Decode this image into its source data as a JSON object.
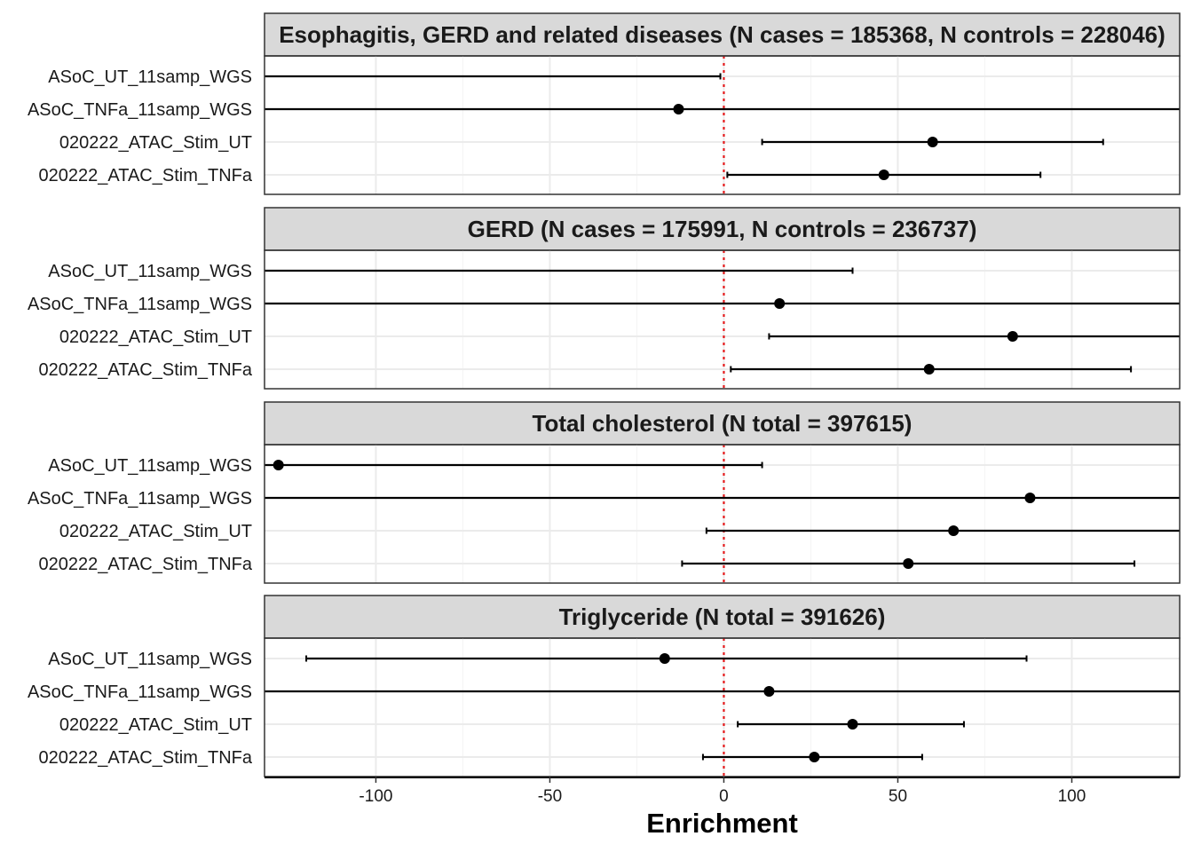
{
  "chart_data": {
    "type": "scatter",
    "style": "forest-plot-with-error-bars",
    "xlabel": "Enrichment",
    "xlim": [
      -132,
      131
    ],
    "x_ticks": [
      -100,
      -50,
      0,
      50,
      100
    ],
    "x_tick_labels": [
      "-100",
      "-50",
      "0",
      "50",
      "100"
    ],
    "reference_line": {
      "x": 0,
      "style": "dotted",
      "color": "#e41a1c"
    },
    "grid": true,
    "row_labels": [
      "ASoC_UT_11samp_WGS",
      "ASoC_TNFa_11samp_WGS",
      "020222_ATAC_Stim_UT",
      "020222_ATAC_Stim_TNFa"
    ],
    "panels": [
      {
        "title": "Esophagitis, GERD and related diseases (N cases = 185368, N controls = 228046)",
        "rows": [
          {
            "label": "ASoC_UT_11samp_WGS",
            "estimate": null,
            "lower": -135,
            "upper": -1
          },
          {
            "label": "ASoC_TNFa_11samp_WGS",
            "estimate": -13,
            "lower": -135,
            "upper": 135
          },
          {
            "label": "020222_ATAC_Stim_UT",
            "estimate": 60,
            "lower": 11,
            "upper": 109
          },
          {
            "label": "020222_ATAC_Stim_TNFa",
            "estimate": 46,
            "lower": 1,
            "upper": 91
          }
        ]
      },
      {
        "title": "GERD (N cases = 175991, N controls = 236737)",
        "rows": [
          {
            "label": "ASoC_UT_11samp_WGS",
            "estimate": null,
            "lower": -135,
            "upper": 37
          },
          {
            "label": "ASoC_TNFa_11samp_WGS",
            "estimate": 16,
            "lower": -135,
            "upper": 135
          },
          {
            "label": "020222_ATAC_Stim_UT",
            "estimate": 83,
            "lower": 13,
            "upper": 135
          },
          {
            "label": "020222_ATAC_Stim_TNFa",
            "estimate": 59,
            "lower": 2,
            "upper": 117
          }
        ]
      },
      {
        "title": "Total cholesterol (N total = 397615)",
        "rows": [
          {
            "label": "ASoC_UT_11samp_WGS",
            "estimate": -128,
            "lower": -135,
            "upper": 11
          },
          {
            "label": "ASoC_TNFa_11samp_WGS",
            "estimate": 88,
            "lower": -135,
            "upper": 135
          },
          {
            "label": "020222_ATAC_Stim_UT",
            "estimate": 66,
            "lower": -5,
            "upper": 135
          },
          {
            "label": "020222_ATAC_Stim_TNFa",
            "estimate": 53,
            "lower": -12,
            "upper": 118
          }
        ]
      },
      {
        "title": "Triglyceride (N total = 391626)",
        "rows": [
          {
            "label": "ASoC_UT_11samp_WGS",
            "estimate": -17,
            "lower": -120,
            "upper": 87
          },
          {
            "label": "ASoC_TNFa_11samp_WGS",
            "estimate": 13,
            "lower": -135,
            "upper": 135
          },
          {
            "label": "020222_ATAC_Stim_UT",
            "estimate": 37,
            "lower": 4,
            "upper": 69
          },
          {
            "label": "020222_ATAC_Stim_TNFa",
            "estimate": 26,
            "lower": -6,
            "upper": 57
          }
        ]
      }
    ],
    "colors": {
      "point": "#000000",
      "errorbar": "#000000",
      "strip_fill": "#d9d9d9",
      "grid": "#ebebeb",
      "reference": "#e41a1c"
    }
  }
}
